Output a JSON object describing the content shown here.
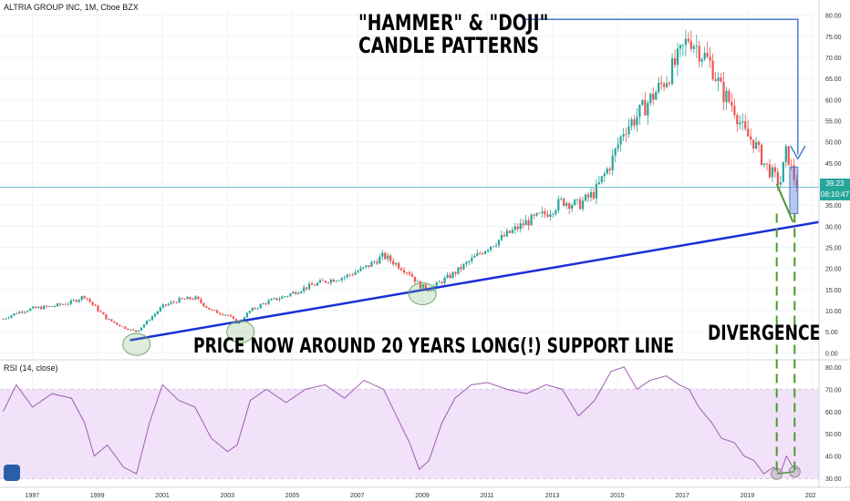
{
  "header": {
    "symbol": "ALTRIA GROUP INC, 1M, Cboe BZX"
  },
  "rsi_header": {
    "label": "RSI (14, close)"
  },
  "annotations": {
    "title_line1": "\"HAMMER\" & \"DOJI\"",
    "title_line2": "CANDLE PATTERNS",
    "support": "PRICE NOW AROUND 20 YEARS LONG(!) SUPPORT LINE",
    "divergence": "DIVERGENCE"
  },
  "price_tags": {
    "last_price": "39.23",
    "countdown": "08:10:47"
  },
  "colors": {
    "up": "#26a69a",
    "down": "#ef5350",
    "support_line": "#1a2fd6",
    "annotation_arrow": "#4a7bd0",
    "divergence": "#4c9a2a",
    "rsi_line": "#a05cb0",
    "rsi_band": "#f1e2fa",
    "price_line": "#5fb8c8"
  },
  "chart_data": [
    {
      "type": "candlestick",
      "x_ticks": [
        "1997",
        "1999",
        "2001",
        "2003",
        "2005",
        "2007",
        "2009",
        "2011",
        "2013",
        "2015",
        "2017",
        "2019",
        "202"
      ],
      "y_ticks": [
        "0.00",
        "5.00",
        "10.00",
        "15.00",
        "20.00",
        "25.00",
        "30.00",
        "35.00",
        "40.00",
        "45.00",
        "50.00",
        "55.00",
        "60.00",
        "65.00",
        "70.00",
        "75.00",
        "80.00"
      ],
      "ylim": [
        -1,
        81
      ],
      "xlim": [
        1996.0,
        2021.2
      ],
      "close_series": [
        [
          1996.1,
          8
        ],
        [
          1996.5,
          9.5
        ],
        [
          1997.0,
          10.5
        ],
        [
          1997.6,
          11
        ],
        [
          1998.2,
          12
        ],
        [
          1998.6,
          13.5
        ],
        [
          1998.9,
          11
        ],
        [
          1999.3,
          8
        ],
        [
          1999.8,
          6
        ],
        [
          2000.2,
          5
        ],
        [
          2000.6,
          8
        ],
        [
          2001.0,
          11
        ],
        [
          2001.5,
          12.5
        ],
        [
          2002.0,
          13
        ],
        [
          2002.5,
          10
        ],
        [
          2003.0,
          9
        ],
        [
          2003.3,
          7
        ],
        [
          2003.7,
          10
        ],
        [
          2004.2,
          12
        ],
        [
          2004.8,
          13.5
        ],
        [
          2005.4,
          15.5
        ],
        [
          2006.0,
          17
        ],
        [
          2006.6,
          18
        ],
        [
          2007.2,
          20
        ],
        [
          2007.8,
          23
        ],
        [
          2008.2,
          21
        ],
        [
          2008.6,
          19
        ],
        [
          2008.9,
          16
        ],
        [
          2009.2,
          15
        ],
        [
          2009.6,
          17
        ],
        [
          2010.0,
          19
        ],
        [
          2010.5,
          22
        ],
        [
          2011.0,
          25
        ],
        [
          2011.6,
          28
        ],
        [
          2012.2,
          31
        ],
        [
          2012.8,
          33
        ],
        [
          2013.3,
          36
        ],
        [
          2013.8,
          35
        ],
        [
          2014.3,
          38
        ],
        [
          2014.8,
          45
        ],
        [
          2015.2,
          53
        ],
        [
          2015.6,
          56
        ],
        [
          2016.0,
          60
        ],
        [
          2016.5,
          65
        ],
        [
          2016.9,
          70
        ],
        [
          2017.2,
          75
        ],
        [
          2017.5,
          72
        ],
        [
          2017.9,
          68
        ],
        [
          2018.2,
          62
        ],
        [
          2018.6,
          58
        ],
        [
          2018.9,
          52
        ],
        [
          2019.2,
          50
        ],
        [
          2019.5,
          45
        ],
        [
          2019.8,
          42
        ],
        [
          2020.0,
          40
        ],
        [
          2020.2,
          48
        ],
        [
          2020.4,
          42
        ],
        [
          2020.55,
          39.23
        ]
      ],
      "support_line": [
        [
          2000.0,
          3
        ],
        [
          2021.2,
          31
        ]
      ],
      "hammer_doji_box": [
        2020.3,
        2020.55,
        33,
        44
      ],
      "last_price": 39.23,
      "highlight_circles": [
        [
          2000.2,
          2
        ],
        [
          2003.4,
          5
        ],
        [
          2009.0,
          14
        ]
      ],
      "annotation_arrow_level": 79
    },
    {
      "type": "line",
      "name": "RSI",
      "y_ticks": [
        "30.00",
        "40.00",
        "50.00",
        "60.00",
        "70.00",
        "80.00"
      ],
      "ylim": [
        28,
        82
      ],
      "band": [
        30,
        70
      ],
      "values": [
        [
          1996.1,
          60
        ],
        [
          1996.5,
          72
        ],
        [
          1997.0,
          62
        ],
        [
          1997.6,
          68
        ],
        [
          1998.2,
          66
        ],
        [
          1998.6,
          55
        ],
        [
          1998.9,
          40
        ],
        [
          1999.3,
          45
        ],
        [
          1999.8,
          35
        ],
        [
          2000.2,
          32
        ],
        [
          2000.6,
          55
        ],
        [
          2001.0,
          72
        ],
        [
          2001.5,
          65
        ],
        [
          2002.0,
          62
        ],
        [
          2002.5,
          48
        ],
        [
          2003.0,
          42
        ],
        [
          2003.3,
          45
        ],
        [
          2003.7,
          65
        ],
        [
          2004.2,
          70
        ],
        [
          2004.8,
          64
        ],
        [
          2005.4,
          70
        ],
        [
          2006.0,
          72
        ],
        [
          2006.6,
          66
        ],
        [
          2007.2,
          74
        ],
        [
          2007.8,
          70
        ],
        [
          2008.2,
          58
        ],
        [
          2008.6,
          46
        ],
        [
          2008.9,
          34
        ],
        [
          2009.2,
          38
        ],
        [
          2009.6,
          55
        ],
        [
          2010.0,
          66
        ],
        [
          2010.5,
          72
        ],
        [
          2011.0,
          73
        ],
        [
          2011.6,
          70
        ],
        [
          2012.2,
          68
        ],
        [
          2012.8,
          72
        ],
        [
          2013.3,
          70
        ],
        [
          2013.8,
          58
        ],
        [
          2014.3,
          65
        ],
        [
          2014.8,
          78
        ],
        [
          2015.2,
          80
        ],
        [
          2015.6,
          70
        ],
        [
          2016.0,
          74
        ],
        [
          2016.5,
          76
        ],
        [
          2016.9,
          72
        ],
        [
          2017.2,
          70
        ],
        [
          2017.5,
          62
        ],
        [
          2017.9,
          55
        ],
        [
          2018.2,
          48
        ],
        [
          2018.6,
          46
        ],
        [
          2018.9,
          40
        ],
        [
          2019.2,
          38
        ],
        [
          2019.5,
          32
        ],
        [
          2019.8,
          35
        ],
        [
          2020.0,
          32
        ],
        [
          2020.2,
          40
        ],
        [
          2020.4,
          35
        ],
        [
          2020.55,
          34
        ]
      ],
      "divergence_points": [
        [
          2019.9,
          32
        ],
        [
          2020.45,
          33
        ]
      ]
    }
  ]
}
